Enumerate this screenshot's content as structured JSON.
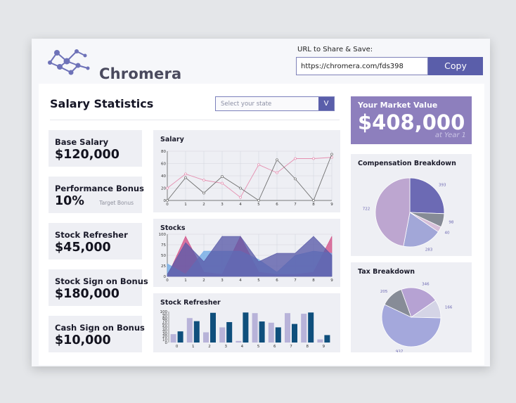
{
  "header": {
    "logo_text": "Chromera",
    "share_label": "URL to Share & Save:",
    "url_value": "https://chromera.com/fds398",
    "copy_label": "Copy"
  },
  "main": {
    "title": "Salary Statistics",
    "state_select": {
      "placeholder": "Select your state",
      "button_label": "V"
    }
  },
  "cards": [
    {
      "label": "Base Salary",
      "value": "$120,000",
      "sub": ""
    },
    {
      "label": "Performance Bonus",
      "value": "10%",
      "sub": "Target Bonus"
    },
    {
      "label": "Stock Refresher",
      "value": "$45,000",
      "sub": ""
    },
    {
      "label": "Stock Sign on Bonus",
      "value": "$180,000",
      "sub": ""
    },
    {
      "label": "Cash Sign on Bonus",
      "value": "$10,000",
      "sub": ""
    }
  ],
  "market_value": {
    "label": "Your Market Value",
    "value": "$408,000",
    "sub": "at Year 1"
  },
  "colors": {
    "brand": "#5a5eaa",
    "accent_purple": "#8d7fbd",
    "card_bg": "#eeeff4",
    "line_pink": "#e58fb0",
    "line_gray": "#6e6e6e",
    "area_pink": "#d24f86",
    "area_blue": "#6fa9e6",
    "area_indigo": "#5a5aa8",
    "bar_light": "#b8b3d9",
    "bar_dark": "#0f4f7c"
  },
  "chart_data": [
    {
      "type": "line",
      "title": "Salary",
      "x": [
        0,
        1,
        2,
        3,
        4,
        5,
        6,
        7,
        8,
        9
      ],
      "ylim": [
        0,
        80
      ],
      "yticks": [
        0,
        20,
        40,
        60,
        80
      ],
      "series": [
        {
          "values": [
            20,
            43,
            33,
            28,
            5,
            58,
            45,
            68,
            68,
            70
          ]
        },
        {
          "values": [
            0,
            37,
            12,
            39,
            20,
            0,
            66,
            35,
            0,
            75
          ]
        }
      ]
    },
    {
      "type": "area",
      "title": "Stocks",
      "x": [
        0,
        1,
        2,
        3,
        4,
        5,
        6,
        7,
        8,
        9
      ],
      "ylim": [
        0,
        100
      ],
      "yticks": [
        0,
        25,
        50,
        75,
        100
      ],
      "series": [
        {
          "values": [
            0,
            95,
            10,
            5,
            95,
            10,
            5,
            5,
            10,
            95
          ]
        },
        {
          "values": [
            30,
            5,
            60,
            60,
            60,
            40,
            10,
            50,
            60,
            55
          ]
        },
        {
          "values": [
            5,
            80,
            35,
            95,
            95,
            35,
            55,
            55,
            95,
            50
          ]
        }
      ]
    },
    {
      "type": "bar",
      "title": "Stock Refresher",
      "categories": [
        "0",
        "1",
        "2",
        "3",
        "4",
        "5",
        "6",
        "7",
        "8",
        "9"
      ],
      "ylim": [
        0,
        100
      ],
      "yticks": [
        0,
        10,
        20,
        30,
        40,
        50,
        60,
        70,
        80,
        90,
        100
      ],
      "series": [
        {
          "values": [
            27,
            79,
            33,
            49,
            5,
            95,
            64,
            95,
            93,
            10
          ]
        },
        {
          "values": [
            36,
            69,
            96,
            66,
            97,
            68,
            49,
            60,
            97,
            24
          ]
        }
      ]
    },
    {
      "type": "pie",
      "title": "Compensation Breakdown",
      "categories": [
        "393",
        "98",
        "40",
        "283",
        "722"
      ],
      "values": [
        393,
        98,
        40,
        283,
        722
      ]
    },
    {
      "type": "pie",
      "title": "Tax Breakdown",
      "categories": [
        "346",
        "166",
        "937",
        "205"
      ],
      "values": [
        346,
        166,
        937,
        205
      ]
    }
  ]
}
